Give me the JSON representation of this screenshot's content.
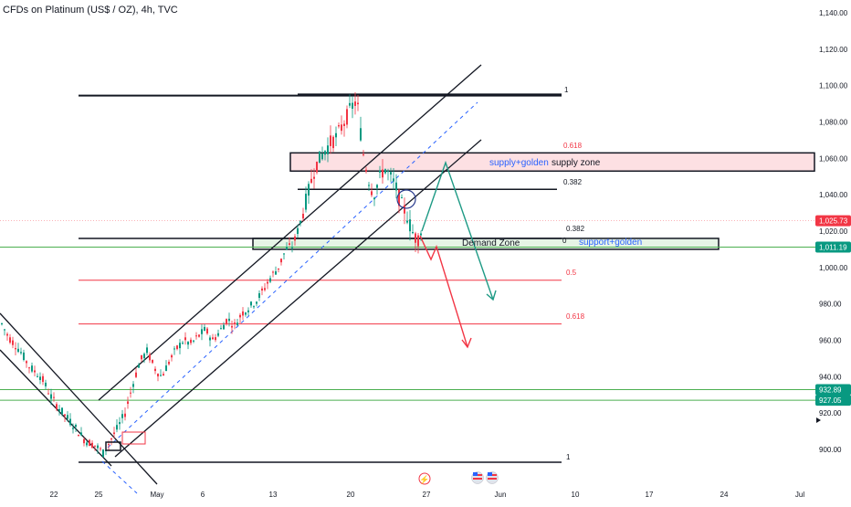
{
  "chart_data": {
    "type": "candlestick",
    "title": "CFDs on Platinum (US$ / OZ), 4h, TVC",
    "y_axis": {
      "min": 890,
      "max": 1150,
      "ticks": [
        "1,140.00",
        "1,120.00",
        "1,100.00",
        "1,080.00",
        "1,060.00",
        "1,040.00",
        "1,020.00",
        "1,000.00",
        "980.00",
        "960.00",
        "940.00",
        "920.00",
        "900.00"
      ],
      "tick_values": [
        1140,
        1120,
        1100,
        1080,
        1060,
        1040,
        1020,
        1000,
        980,
        960,
        940,
        920,
        900
      ]
    },
    "x_axis": {
      "ticks": [
        "22",
        "25",
        "May",
        "6",
        "13",
        "20",
        "27",
        "Jun",
        "10",
        "17",
        "24",
        "Jul"
      ]
    },
    "price_badges": [
      {
        "label": "1,025.73",
        "value": 1025.73,
        "color": "#f23645"
      },
      {
        "label": "1,011.19",
        "value": 1011.19,
        "color": "#089981"
      },
      {
        "label": "932.89",
        "value": 932.89,
        "color": "#089981"
      },
      {
        "label": "927.05",
        "value": 927.05,
        "color": "#089981"
      }
    ],
    "series": [
      {
        "name": "",
        "approx_path": [
          [
            0,
            970
          ],
          [
            8,
            962
          ],
          [
            20,
            955
          ],
          [
            32,
            945
          ],
          [
            44,
            940
          ],
          [
            56,
            928
          ],
          [
            68,
            920
          ],
          [
            80,
            913
          ],
          [
            92,
            905
          ],
          [
            104,
            902
          ],
          [
            112,
            898
          ],
          [
            120,
            905
          ],
          [
            128,
            912
          ],
          [
            136,
            920
          ],
          [
            144,
            935
          ],
          [
            152,
            948
          ],
          [
            160,
            954
          ],
          [
            168,
            945
          ],
          [
            176,
            940
          ],
          [
            184,
            948
          ],
          [
            192,
            955
          ],
          [
            200,
            960
          ],
          [
            208,
            958
          ],
          [
            216,
            962
          ],
          [
            224,
            966
          ],
          [
            232,
            960
          ],
          [
            240,
            965
          ],
          [
            248,
            972
          ],
          [
            256,
            968
          ],
          [
            264,
            975
          ],
          [
            272,
            978
          ],
          [
            280,
            982
          ],
          [
            288,
            988
          ],
          [
            296,
            995
          ],
          [
            304,
            1000
          ],
          [
            312,
            1010
          ],
          [
            320,
            1012
          ],
          [
            328,
            1025
          ],
          [
            336,
            1040
          ],
          [
            344,
            1055
          ],
          [
            352,
            1062
          ],
          [
            360,
            1068
          ],
          [
            368,
            1072
          ],
          [
            376,
            1080
          ],
          [
            384,
            1088
          ],
          [
            390,
            1092
          ],
          [
            396,
            1065
          ],
          [
            402,
            1050
          ],
          [
            408,
            1040
          ],
          [
            414,
            1048
          ],
          [
            420,
            1055
          ],
          [
            426,
            1050
          ],
          [
            432,
            1045
          ],
          [
            438,
            1035
          ],
          [
            444,
            1030
          ],
          [
            450,
            1020
          ],
          [
            456,
            1015
          ],
          [
            462,
            1022
          ]
        ]
      }
    ],
    "annotations": [
      {
        "text": "1",
        "kind": "fib"
      },
      {
        "text": "0.618",
        "kind": "fib"
      },
      {
        "text": "0.382",
        "kind": "fib"
      },
      {
        "text": "0.382",
        "kind": "fib"
      },
      {
        "text": "0",
        "kind": "fib"
      },
      {
        "text": "0.5",
        "kind": "fib"
      },
      {
        "text": "0.618",
        "kind": "fib"
      },
      {
        "text": "1",
        "kind": "fib"
      },
      {
        "text": "supply+golden",
        "kind": "zone-label"
      },
      {
        "text": "supply zone",
        "kind": "zone-label"
      },
      {
        "text": "Demand Zone",
        "kind": "zone-label"
      },
      {
        "text": "support+golden",
        "kind": "zone-label"
      }
    ],
    "levels": {
      "top_line": 1094.5,
      "fib_618_top": 1062,
      "supply_zone": [
        1053,
        1063
      ],
      "fib_382_upper": 1043,
      "fib_382_lower": 1016,
      "demand_zone": [
        1010,
        1016
      ],
      "support_line": 1011.19,
      "fib_5": 993,
      "fib_618_bottom": 969,
      "green_1": 932.89,
      "green_2": 927.05,
      "bottom_line": 893
    },
    "colors": {
      "up": "#089981",
      "down": "#f23645",
      "supply_fill": "#fde0e3",
      "demand_fill": "#e6f4e6",
      "green_line": "#4caf50",
      "red_line": "#f23645",
      "teal_arrow": "#1e9a85",
      "channel": "#131722"
    },
    "legend": "none",
    "grid": false
  }
}
